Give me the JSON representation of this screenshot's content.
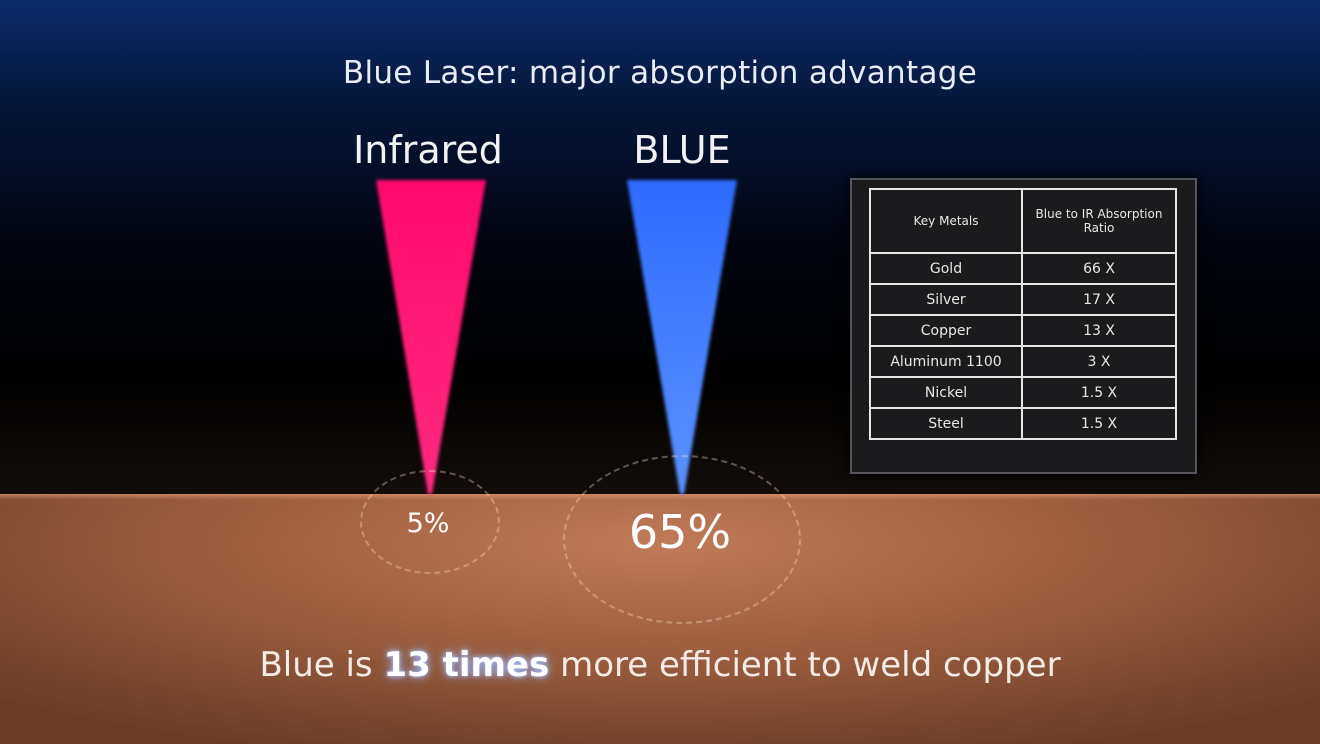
{
  "title": "Blue Laser: major absorption advantage",
  "beams": [
    {
      "label": "Infrared",
      "absorption": "5%",
      "color": "#ff0a6c"
    },
    {
      "label": "BLUE",
      "absorption": "65%",
      "color": "#3d7bff"
    }
  ],
  "table": {
    "headers": [
      "Key Metals",
      "Blue to IR Absorption Ratio"
    ],
    "rows": [
      [
        "Gold",
        "66 X"
      ],
      [
        "Silver",
        "17 X"
      ],
      [
        "Copper",
        "13 X"
      ],
      [
        "Aluminum 1100",
        "3 X"
      ],
      [
        "Nickel",
        "1.5 X"
      ],
      [
        "Steel",
        "1.5 X"
      ]
    ]
  },
  "caption": {
    "before": "Blue is",
    "highlight": "13 times",
    "after": "more efficient to weld copper"
  }
}
